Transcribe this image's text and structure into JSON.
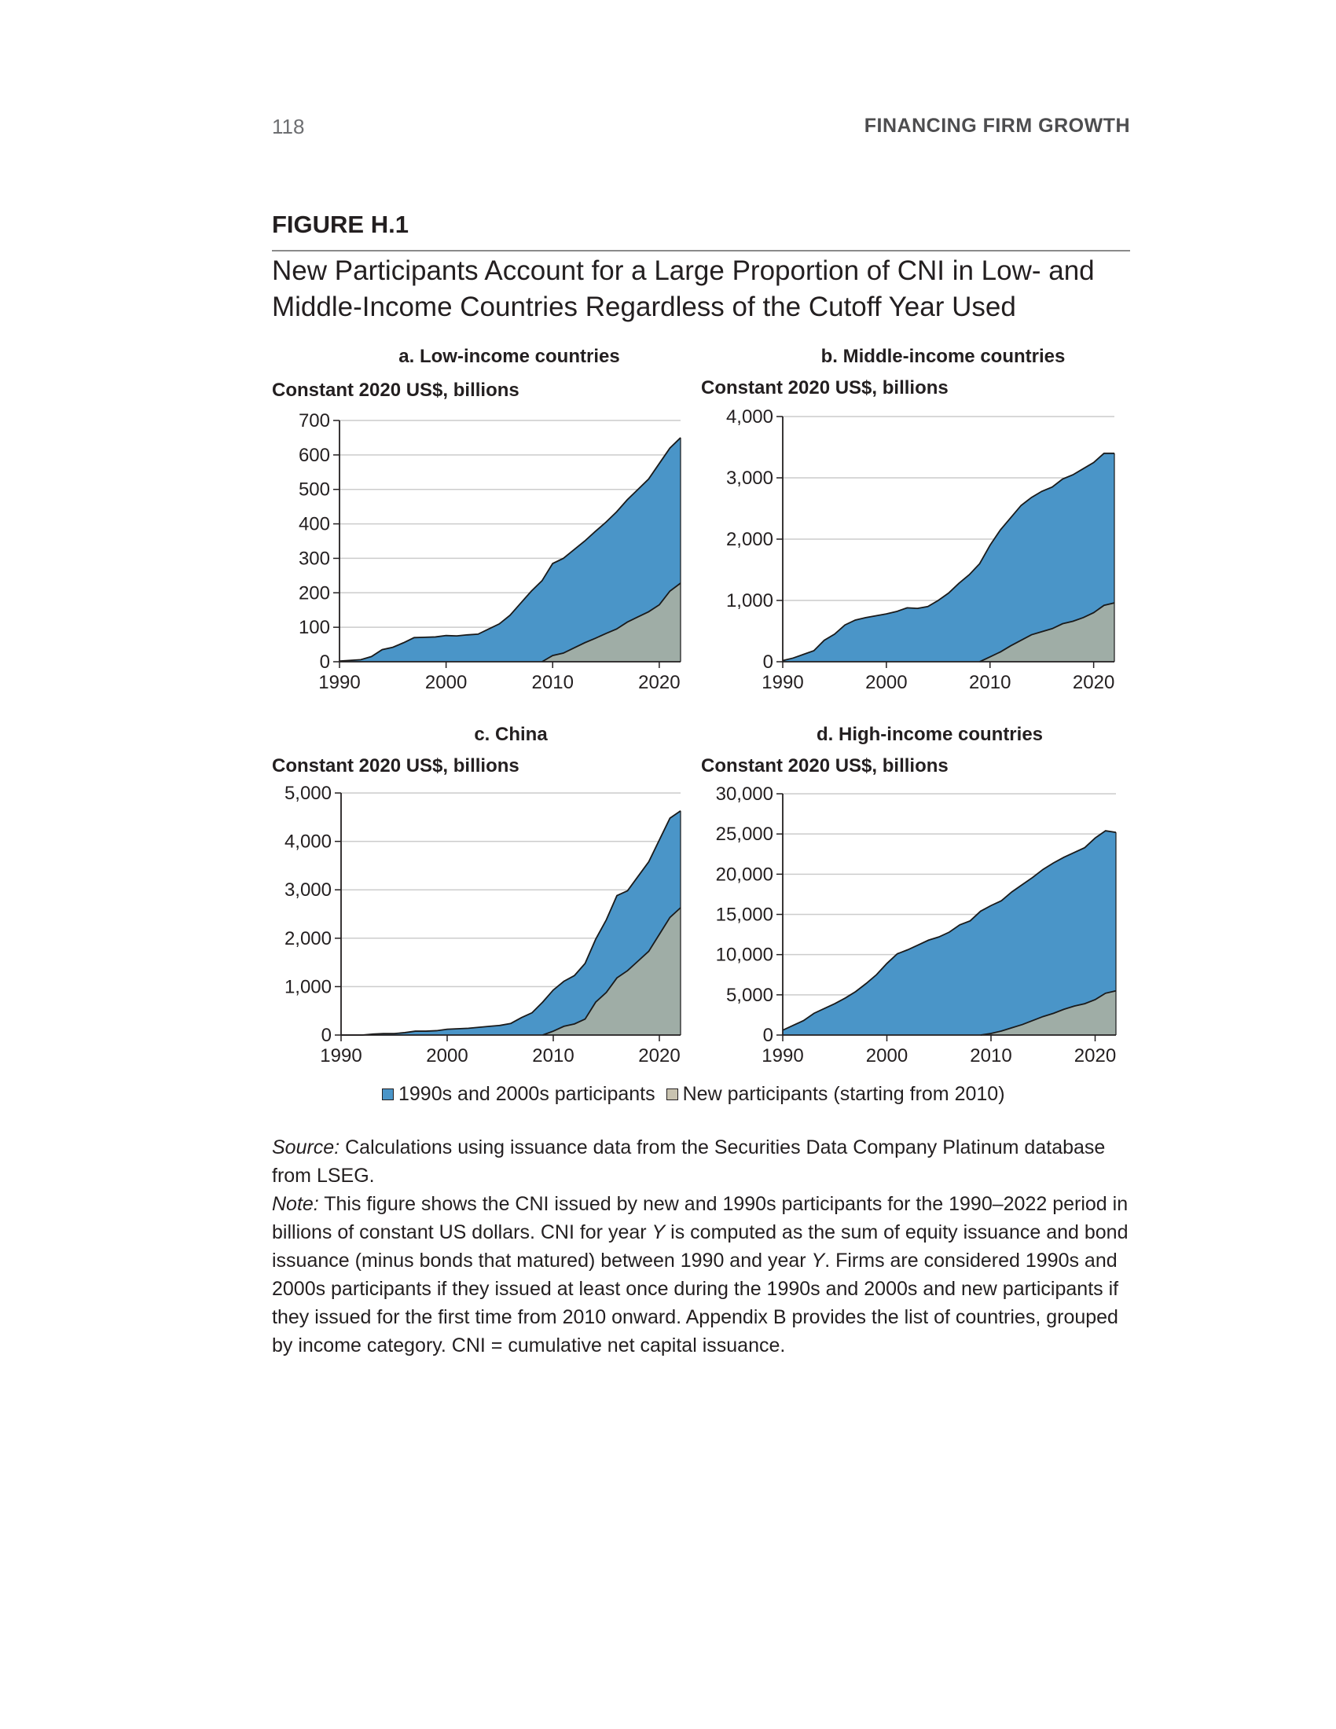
{
  "header": {
    "page_number": "118",
    "running_head": "FINANCING FIRM GROWTH"
  },
  "figure": {
    "label": "FIGURE H.1",
    "title": "New Participants Account for a Large Proportion of CNI in Low- and Middle-Income Countries Regardless of the Cutoff Year Used"
  },
  "legend": [
    {
      "label": "1990s and 2000s participants",
      "color": "#4a95c8"
    },
    {
      "label": "New participants (starting from 2010)",
      "color": "#c9c3b0"
    }
  ],
  "colors": {
    "old_area": "#4a95c8",
    "new_area": "#9fada6",
    "outline": "#1a1a1a",
    "grid": "#cccccc",
    "axis": "#231f20"
  },
  "chart_data": [
    {
      "type": "area",
      "title": "a. Low-income countries",
      "ylabel": "Constant 2020 US$, billions",
      "ylim": [
        0,
        700
      ],
      "yticks": [
        0,
        100,
        200,
        300,
        400,
        500,
        600,
        700
      ],
      "ytick_labels": [
        "0",
        "100",
        "200",
        "300",
        "400",
        "500",
        "600",
        "700"
      ],
      "xlim": [
        1990,
        2022
      ],
      "xticks": [
        1990,
        2000,
        2010,
        2020
      ],
      "grid": true,
      "x": [
        1990,
        1991,
        1992,
        1993,
        1994,
        1995,
        1996,
        1997,
        1998,
        1999,
        2000,
        2001,
        2002,
        2003,
        2004,
        2005,
        2006,
        2007,
        2008,
        2009,
        2010,
        2011,
        2012,
        2013,
        2014,
        2015,
        2016,
        2017,
        2018,
        2019,
        2020,
        2021,
        2022
      ],
      "series": [
        {
          "name": "1990s and 2000s participants",
          "values": [
            2,
            4,
            6,
            15,
            35,
            42,
            55,
            70,
            71,
            72,
            76,
            75,
            78,
            80,
            95,
            110,
            135,
            170,
            205,
            235,
            285,
            300,
            325,
            350,
            378,
            405,
            435,
            470,
            500,
            530,
            575,
            620,
            650
          ]
        },
        {
          "name": "New participants (starting from 2010)",
          "values": [
            0,
            0,
            0,
            0,
            0,
            0,
            0,
            0,
            0,
            0,
            0,
            0,
            0,
            0,
            0,
            0,
            0,
            0,
            0,
            0,
            18,
            25,
            40,
            55,
            68,
            82,
            95,
            115,
            130,
            145,
            165,
            205,
            228
          ]
        }
      ]
    },
    {
      "type": "area",
      "title": "b. Middle-income countries",
      "ylabel": "Constant 2020 US$, billions",
      "ylim": [
        0,
        4000
      ],
      "yticks": [
        0,
        1000,
        2000,
        3000,
        4000
      ],
      "ytick_labels": [
        "0",
        "1,000",
        "2,000",
        "3,000",
        "4,000"
      ],
      "xlim": [
        1990,
        2022
      ],
      "xticks": [
        1990,
        2000,
        2010,
        2020
      ],
      "grid": true,
      "x": [
        1990,
        1991,
        1992,
        1993,
        1994,
        1995,
        1996,
        1997,
        1998,
        1999,
        2000,
        2001,
        2002,
        2003,
        2004,
        2005,
        2006,
        2007,
        2008,
        2009,
        2010,
        2011,
        2012,
        2013,
        2014,
        2015,
        2016,
        2017,
        2018,
        2019,
        2020,
        2021,
        2022
      ],
      "series": [
        {
          "name": "1990s and 2000s participants",
          "values": [
            20,
            60,
            120,
            180,
            350,
            450,
            600,
            680,
            720,
            750,
            780,
            820,
            880,
            870,
            900,
            1000,
            1120,
            1280,
            1420,
            1600,
            1900,
            2150,
            2350,
            2550,
            2680,
            2780,
            2850,
            2980,
            3050,
            3150,
            3250,
            3400,
            3400
          ]
        },
        {
          "name": "New participants (starting from 2010)",
          "values": [
            0,
            0,
            0,
            0,
            0,
            0,
            0,
            0,
            0,
            0,
            0,
            0,
            0,
            0,
            0,
            0,
            0,
            0,
            0,
            0,
            80,
            160,
            260,
            350,
            440,
            490,
            540,
            620,
            660,
            720,
            800,
            920,
            960
          ]
        }
      ]
    },
    {
      "type": "area",
      "title": "c. China",
      "ylabel": "Constant 2020 US$, billions",
      "ylim": [
        0,
        5000
      ],
      "yticks": [
        0,
        1000,
        2000,
        3000,
        4000,
        5000
      ],
      "ytick_labels": [
        "0",
        "1,000",
        "2,000",
        "3,000",
        "4,000",
        "5,000"
      ],
      "xlim": [
        1990,
        2022
      ],
      "xticks": [
        1990,
        2000,
        2010,
        2020
      ],
      "grid": true,
      "x": [
        1990,
        1991,
        1992,
        1993,
        1994,
        1995,
        1996,
        1997,
        1998,
        1999,
        2000,
        2001,
        2002,
        2003,
        2004,
        2005,
        2006,
        2007,
        2008,
        2009,
        2010,
        2011,
        2012,
        2013,
        2014,
        2015,
        2016,
        2017,
        2018,
        2019,
        2020,
        2021,
        2022
      ],
      "series": [
        {
          "name": "1990s and 2000s participants",
          "values": [
            0,
            0,
            0,
            20,
            30,
            30,
            50,
            80,
            80,
            90,
            120,
            130,
            140,
            160,
            180,
            200,
            240,
            360,
            460,
            680,
            930,
            1110,
            1230,
            1480,
            1980,
            2380,
            2880,
            2980,
            3280,
            3580,
            4030,
            4480,
            4630
          ]
        },
        {
          "name": "New participants (starting from 2010)",
          "values": [
            0,
            0,
            0,
            0,
            0,
            0,
            0,
            0,
            0,
            0,
            0,
            0,
            0,
            0,
            0,
            0,
            0,
            0,
            0,
            0,
            80,
            180,
            230,
            330,
            680,
            880,
            1180,
            1330,
            1530,
            1730,
            2080,
            2430,
            2630
          ]
        }
      ]
    },
    {
      "type": "area",
      "title": "d. High-income countries",
      "ylabel": "Constant 2020 US$, billions",
      "ylim": [
        0,
        30000
      ],
      "yticks": [
        0,
        5000,
        10000,
        15000,
        20000,
        25000,
        30000
      ],
      "ytick_labels": [
        "0",
        "5,000",
        "10,000",
        "15,000",
        "20,000",
        "25,000",
        "30,000"
      ],
      "xlim": [
        1990,
        2022
      ],
      "xticks": [
        1990,
        2000,
        2010,
        2020
      ],
      "grid": true,
      "x": [
        1990,
        1991,
        1992,
        1993,
        1994,
        1995,
        1996,
        1997,
        1998,
        1999,
        2000,
        2001,
        2002,
        2003,
        2004,
        2005,
        2006,
        2007,
        2008,
        2009,
        2010,
        2011,
        2012,
        2013,
        2014,
        2015,
        2016,
        2017,
        2018,
        2019,
        2020,
        2021,
        2022
      ],
      "series": [
        {
          "name": "1990s and 2000s participants",
          "values": [
            600,
            1200,
            1800,
            2700,
            3300,
            3900,
            4600,
            5400,
            6400,
            7500,
            8900,
            10100,
            10600,
            11200,
            11800,
            12200,
            12800,
            13700,
            14200,
            15400,
            16100,
            16700,
            17800,
            18700,
            19600,
            20600,
            21400,
            22100,
            22700,
            23300,
            24500,
            25400,
            25200
          ]
        },
        {
          "name": "New participants (starting from 2010)",
          "values": [
            0,
            0,
            0,
            0,
            0,
            0,
            0,
            0,
            0,
            0,
            0,
            0,
            0,
            0,
            0,
            0,
            0,
            0,
            0,
            0,
            200,
            500,
            900,
            1300,
            1800,
            2300,
            2700,
            3200,
            3600,
            3900,
            4400,
            5200,
            5500
          ]
        }
      ]
    }
  ],
  "notes": {
    "source_label": "Source:",
    "source_text": " Calculations using issuance data from the Securities Data Company Platinum database from LSEG.",
    "note_label": "Note:",
    "note_part1": " This figure shows the CNI issued by new and 1990s participants for the 1990–2022 period in billions of constant US dollars. CNI for year ",
    "note_var1": "Y",
    "note_part2": " is computed as the sum of equity issuance and bond issuance (minus bonds that matured) between 1990 and year ",
    "note_var2": "Y",
    "note_part3": ". Firms are considered 1990s and 2000s participants if they issued at least once during the 1990s and 2000s and new participants if they issued for the first time from 2010 onward. Appendix B provides the list of countries, grouped by income category. CNI = cumulative net capital issuance."
  }
}
